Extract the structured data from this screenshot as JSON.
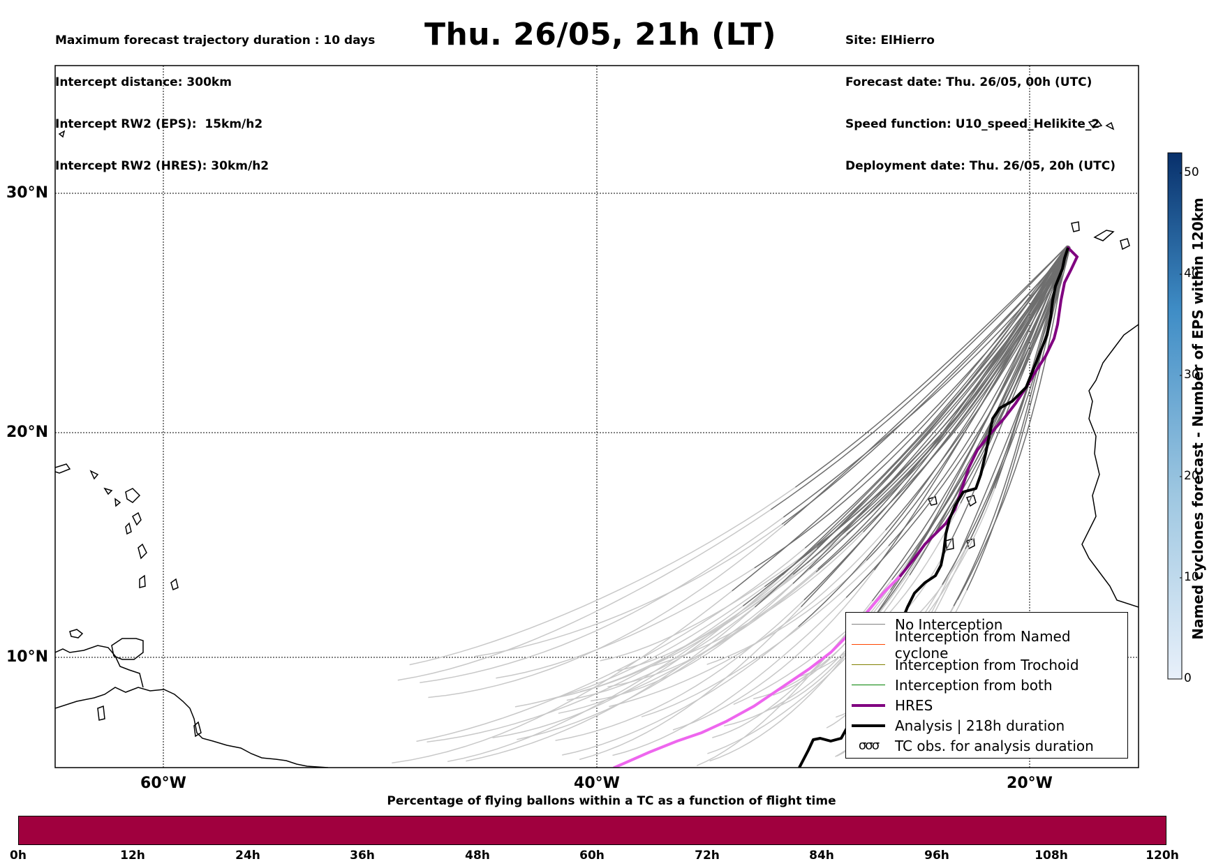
{
  "header": {
    "left_lines": [
      "Maximum forecast trajectory duration : 10 days",
      "Intercept distance: 300km",
      "Intercept RW2 (EPS):  15km/h2",
      "Intercept RW2 (HRES): 30km/h2"
    ],
    "title": "Thu. 26/05, 21h (LT)",
    "right_lines": [
      "Site: ElHierro",
      "Forecast date: Thu. 26/05, 00h (UTC)",
      "Speed function: U10_speed_Helikite_2",
      "Deployment date: Thu. 26/05, 20h (UTC)"
    ]
  },
  "map": {
    "lat_labels": [
      "30°N",
      "20°N",
      "10°N"
    ],
    "lon_labels": [
      "60°W",
      "40°W",
      "20°W"
    ],
    "grid": true
  },
  "legend": {
    "items": [
      {
        "label": "No Interception",
        "color": "#808080",
        "width": 1.5
      },
      {
        "label": "Interception from Named cyclone",
        "color": "#ff4500",
        "width": 1.5
      },
      {
        "label": "Interception from Trochoid",
        "color": "#808000",
        "width": 1.5
      },
      {
        "label": "Interception from both",
        "color": "#008000",
        "width": 1.5
      },
      {
        "label": "HRES",
        "color": "#800080",
        "width": 4
      },
      {
        "label": "Analysis | 218h duration",
        "color": "#000000",
        "width": 4
      }
    ],
    "symbol_item": {
      "symbol": "σσσ",
      "label": "TC obs. for analysis duration"
    }
  },
  "colorbar": {
    "label": "Named cyclones forecast - Number of EPS within 120km",
    "ticks": [
      "0",
      "10",
      "20",
      "30",
      "40",
      "50"
    ],
    "min": 0,
    "max": 52
  },
  "timebar": {
    "title": "Percentage of flying ballons within a TC as a function of flight time",
    "ticks": [
      "0h",
      "12h",
      "24h",
      "36h",
      "48h",
      "60h",
      "72h",
      "84h",
      "96h",
      "108h",
      "120h"
    ],
    "color": "#a0003e"
  },
  "colors": {
    "eps_dark": "#6e6e6e",
    "eps_light": "#c8c8c8",
    "hres_dark": "#800080",
    "hres_light": "#ee66ee",
    "analysis": "#000000"
  }
}
